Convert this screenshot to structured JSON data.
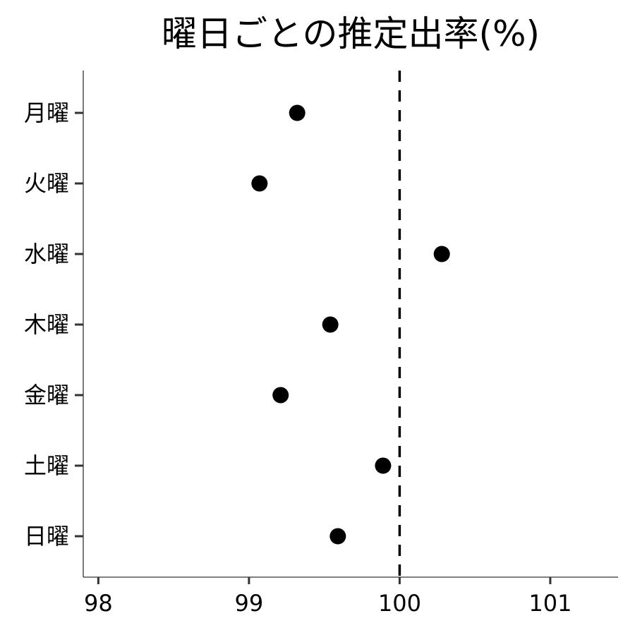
{
  "chart_data": {
    "type": "scatter",
    "title": "曜日ごとの推定出率(%)",
    "xlabel": "",
    "ylabel": "",
    "categories": [
      "月曜",
      "火曜",
      "水曜",
      "木曜",
      "金曜",
      "土曜",
      "日曜"
    ],
    "values": [
      99.32,
      99.07,
      100.28,
      99.54,
      99.21,
      99.89,
      99.59
    ],
    "reference_line": 100,
    "xlim": [
      97.9,
      101.45
    ],
    "xticks": [
      {
        "value": 98,
        "label": "98"
      },
      {
        "value": 99,
        "label": "99"
      },
      {
        "value": 100,
        "label": "100"
      },
      {
        "value": 101,
        "label": "101"
      }
    ],
    "grid": false,
    "legend": "none",
    "colors": {
      "point": "#000000",
      "reference": "#000000",
      "axis": "#333333",
      "text": "#000000"
    }
  }
}
